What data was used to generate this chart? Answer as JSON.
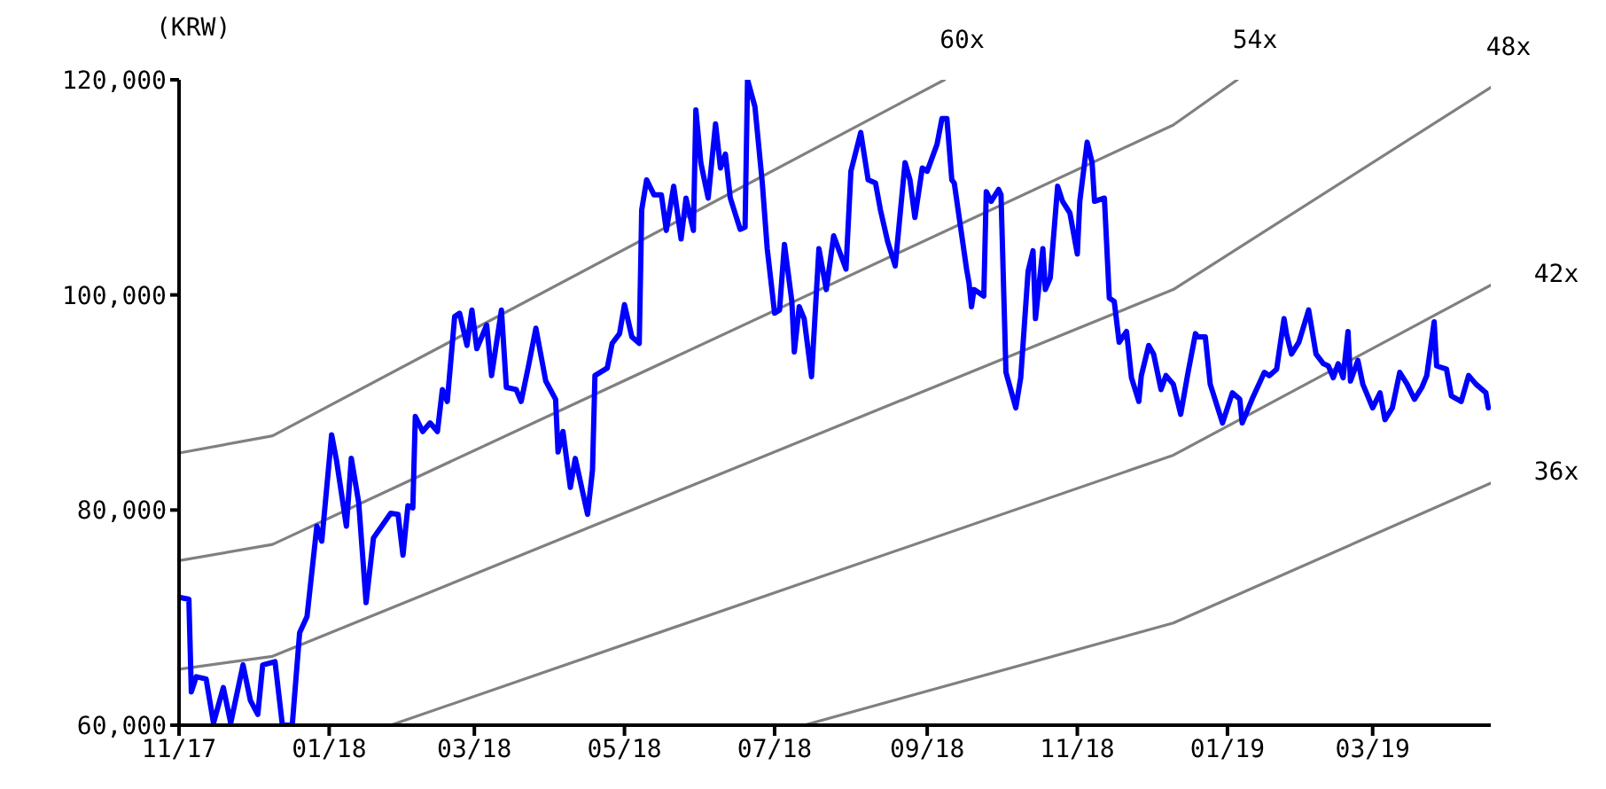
{
  "chart_data": {
    "type": "line",
    "ylabel": "(KRW)",
    "xlim": [
      "2017-11-01",
      "2019-04-18"
    ],
    "xticks": [
      {
        "value": "2017-11-01",
        "label": "11/17"
      },
      {
        "value": "2018-01-01",
        "label": "01/18"
      },
      {
        "value": "2018-03-01",
        "label": "03/18"
      },
      {
        "value": "2018-05-01",
        "label": "05/18"
      },
      {
        "value": "2018-07-01",
        "label": "07/18"
      },
      {
        "value": "2018-09-01",
        "label": "09/18"
      },
      {
        "value": "2018-11-01",
        "label": "11/18"
      },
      {
        "value": "2019-01-01",
        "label": "01/19"
      },
      {
        "value": "2019-03-01",
        "label": "03/19"
      }
    ],
    "ylim": [
      60000,
      120000
    ],
    "yticks": [
      {
        "value": 60000,
        "label": "60,000"
      },
      {
        "value": 80000,
        "label": "80,000"
      },
      {
        "value": 100000,
        "label": "100,000"
      },
      {
        "value": 120000,
        "label": "120,000"
      }
    ],
    "series": [
      {
        "name": "60x",
        "color": "#808080",
        "x": [
          "2017-11-01",
          "2017-12-09",
          "2018-09-08"
        ],
        "values": [
          85300,
          86900,
          120000
        ]
      },
      {
        "name": "54x",
        "color": "#808080",
        "x": [
          "2017-11-01",
          "2017-12-09",
          "2018-12-10",
          "2019-01-05"
        ],
        "values": [
          75300,
          76800,
          115800,
          120000
        ]
      },
      {
        "name": "48x",
        "color": "#808080",
        "x": [
          "2017-11-01",
          "2017-12-09",
          "2018-12-10",
          "2019-04-18"
        ],
        "values": [
          65200,
          66400,
          100500,
          119300
        ]
      },
      {
        "name": "42x",
        "color": "#808080",
        "x": [
          "2018-01-26",
          "2018-12-10",
          "2019-04-18"
        ],
        "values": [
          60000,
          85100,
          100900
        ]
      },
      {
        "name": "36x",
        "color": "#808080",
        "x": [
          "2018-07-13",
          "2018-12-10",
          "2019-04-18"
        ],
        "values": [
          60000,
          69500,
          82500
        ]
      },
      {
        "color": "#0000ff",
        "x": [
          "2017-11-01",
          "2017-11-05",
          "2017-11-06",
          "2017-11-08",
          "2017-11-12",
          "2017-11-15",
          "2017-11-19",
          "2017-11-22",
          "2017-11-27",
          "2017-11-30",
          "2017-12-03",
          "2017-12-05",
          "2017-12-10",
          "2017-12-13",
          "2017-12-17",
          "2017-12-20",
          "2017-12-23",
          "2017-12-27",
          "2017-12-29",
          "2018-01-02",
          "2018-01-04",
          "2018-01-08",
          "2018-01-10",
          "2018-01-13",
          "2018-01-16",
          "2018-01-19",
          "2018-01-26",
          "2018-01-29",
          "2018-01-31",
          "2018-02-02",
          "2018-02-04",
          "2018-02-05",
          "2018-02-08",
          "2018-02-11",
          "2018-02-14",
          "2018-02-16",
          "2018-02-18",
          "2018-02-21",
          "2018-02-23",
          "2018-02-26",
          "2018-02-28",
          "2018-03-02",
          "2018-03-06",
          "2018-03-08",
          "2018-03-12",
          "2018-03-14",
          "2018-03-18",
          "2018-03-20",
          "2018-03-23",
          "2018-03-26",
          "2018-03-30",
          "2018-04-03",
          "2018-04-04",
          "2018-04-06",
          "2018-04-09",
          "2018-04-11",
          "2018-04-16",
          "2018-04-18",
          "2018-04-19",
          "2018-04-24",
          "2018-04-26",
          "2018-04-29",
          "2018-05-01",
          "2018-05-04",
          "2018-05-07",
          "2018-05-08",
          "2018-05-10",
          "2018-05-13",
          "2018-05-16",
          "2018-05-18",
          "2018-05-21",
          "2018-05-24",
          "2018-05-26",
          "2018-05-29",
          "2018-05-30",
          "2018-06-01",
          "2018-06-04",
          "2018-06-07",
          "2018-06-09",
          "2018-06-11",
          "2018-06-13",
          "2018-06-17",
          "2018-06-19",
          "2018-06-20",
          "2018-06-23",
          "2018-06-26",
          "2018-06-28",
          "2018-07-01",
          "2018-07-03",
          "2018-07-05",
          "2018-07-08",
          "2018-07-09",
          "2018-07-11",
          "2018-07-13",
          "2018-07-16",
          "2018-07-19",
          "2018-07-22",
          "2018-07-25",
          "2018-07-30",
          "2018-08-01",
          "2018-08-05",
          "2018-08-08",
          "2018-08-11",
          "2018-08-13",
          "2018-08-16",
          "2018-08-19",
          "2018-08-23",
          "2018-08-25",
          "2018-08-27",
          "2018-08-30",
          "2018-09-01",
          "2018-09-05",
          "2018-09-07",
          "2018-09-09",
          "2018-09-11",
          "2018-09-12",
          "2018-09-17",
          "2018-09-18",
          "2018-09-19",
          "2018-09-20",
          "2018-09-24",
          "2018-09-25",
          "2018-09-27",
          "2018-09-30",
          "2018-10-01",
          "2018-10-03",
          "2018-10-07",
          "2018-10-09",
          "2018-10-12",
          "2018-10-14",
          "2018-10-15",
          "2018-10-18",
          "2018-10-19",
          "2018-10-21",
          "2018-10-24",
          "2018-10-26",
          "2018-10-29",
          "2018-11-01",
          "2018-11-02",
          "2018-11-05",
          "2018-11-07",
          "2018-11-08",
          "2018-11-12",
          "2018-11-14",
          "2018-11-16",
          "2018-11-18",
          "2018-11-21",
          "2018-11-23",
          "2018-11-26",
          "2018-11-27",
          "2018-11-30",
          "2018-12-02",
          "2018-12-05",
          "2018-12-07",
          "2018-12-10",
          "2018-12-13",
          "2018-12-16",
          "2018-12-19",
          "2018-12-20",
          "2018-12-23",
          "2018-12-25",
          "2018-12-30",
          "2019-01-03",
          "2019-01-06",
          "2019-01-07",
          "2019-01-11",
          "2019-01-16",
          "2019-01-18",
          "2019-01-21",
          "2019-01-22",
          "2019-01-24",
          "2019-01-25",
          "2019-01-27",
          "2019-01-30",
          "2019-02-03",
          "2019-02-06",
          "2019-02-09",
          "2019-02-11",
          "2019-02-13",
          "2019-02-15",
          "2019-02-17",
          "2019-02-19",
          "2019-02-20",
          "2019-02-23",
          "2019-02-25",
          "2019-02-27",
          "2019-03-01",
          "2019-03-04",
          "2019-03-06",
          "2019-03-09",
          "2019-03-12",
          "2019-03-15",
          "2019-03-18",
          "2019-03-21",
          "2019-03-23",
          "2019-03-26",
          "2019-03-27",
          "2019-03-31",
          "2019-04-02",
          "2019-04-06",
          "2019-04-09",
          "2019-04-12",
          "2019-04-16",
          "2019-04-17"
        ],
        "values": [
          71900,
          71700,
          63100,
          64500,
          64300,
          60200,
          63500,
          60200,
          65600,
          62300,
          61000,
          65600,
          65900,
          60000,
          60000,
          68600,
          70100,
          78500,
          77100,
          87000,
          84600,
          78500,
          84800,
          80700,
          71400,
          77400,
          79700,
          79600,
          75800,
          80400,
          80200,
          88700,
          87300,
          88100,
          87300,
          91200,
          90100,
          98000,
          98300,
          95300,
          98600,
          95000,
          97200,
          92500,
          98600,
          91400,
          91200,
          90100,
          93400,
          96900,
          92000,
          90300,
          85400,
          87300,
          82100,
          84800,
          79600,
          83700,
          92500,
          93200,
          95500,
          96400,
          99100,
          96100,
          95500,
          107900,
          110700,
          109300,
          109300,
          106000,
          110100,
          105200,
          109000,
          106000,
          117200,
          112300,
          109000,
          115900,
          111800,
          113100,
          109000,
          106100,
          106300,
          120000,
          117500,
          110400,
          104300,
          98300,
          98600,
          104700,
          99400,
          94700,
          98900,
          97800,
          92400,
          104300,
          100500,
          105500,
          102400,
          111500,
          115100,
          110700,
          110400,
          107900,
          104900,
          102700,
          112300,
          110700,
          107200,
          111800,
          111500,
          114000,
          116400,
          116400,
          110700,
          110400,
          102400,
          101100,
          98900,
          100500,
          99900,
          109600,
          108700,
          109800,
          109300,
          92800,
          89500,
          92300,
          102200,
          104100,
          97800,
          104300,
          100500,
          101600,
          110100,
          108700,
          107600,
          103800,
          108700,
          114200,
          112300,
          108700,
          109000,
          99700,
          99400,
          95600,
          96600,
          92300,
          90100,
          92500,
          95300,
          94500,
          91200,
          92500,
          91700,
          88900,
          92800,
          96400,
          96100,
          96100,
          91700,
          88100,
          90900,
          90300,
          88100,
          90300,
          92800,
          92500,
          93100,
          94700,
          97800,
          96400,
          94500,
          95600,
          98600,
          94500,
          93600,
          93400,
          92300,
          93600,
          92300,
          96600,
          92000,
          93900,
          91700,
          90600,
          89500,
          90900,
          88400,
          89500,
          92800,
          91700,
          90300,
          91400,
          92500,
          97500,
          93400,
          93100,
          90600,
          90100,
          92500,
          91700,
          90900,
          89500
        ]
      }
    ]
  }
}
